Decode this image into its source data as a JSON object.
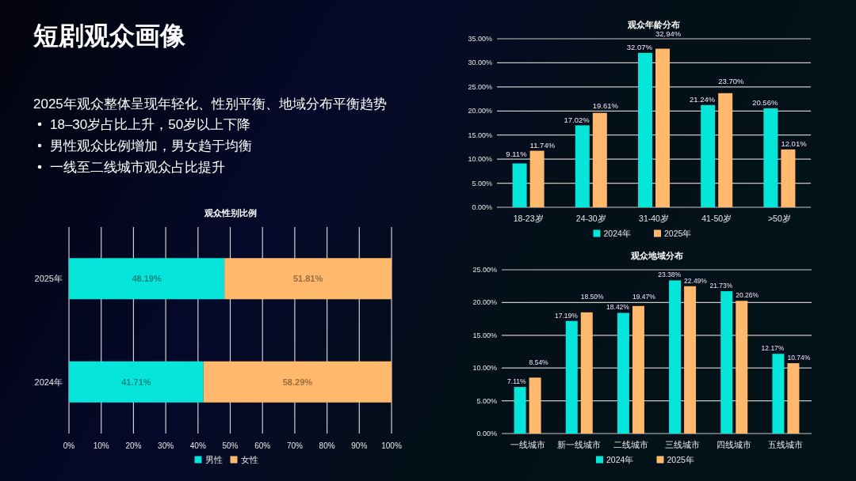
{
  "chart_data": [
    {
      "type": "other",
      "title": "短剧观众画像",
      "subtitle": "2025年观众整体呈现年轻化、性别平衡、地域分布平衡趋势",
      "annotations": [
        "18–30岁占比上升，50岁以上下降",
        "男性观众比例增加，男女趋于均衡",
        "一线至二线城市观众占比提升"
      ]
    },
    {
      "type": "bar",
      "title": "观众年龄分布",
      "categories": [
        "18-23岁",
        "24-30岁",
        "31-40岁",
        "41-50岁",
        ">50岁"
      ],
      "series": [
        {
          "name": "2024年",
          "color": "#05e5da",
          "values": [
            9.11,
            17.02,
            32.07,
            21.24,
            20.56
          ],
          "value_labels": [
            "9.11%",
            "17.02%",
            "32.07%",
            "21.24%",
            "20.56%"
          ]
        },
        {
          "name": "2025年",
          "color": "#ffb86c",
          "values": [
            11.74,
            19.61,
            32.94,
            23.7,
            12.01
          ],
          "value_labels": [
            "11.74%",
            "19.61%",
            "32.94%",
            "23.70%",
            "12.01%"
          ]
        }
      ],
      "ylim": [
        0,
        35
      ],
      "yticks": [
        {
          "value": 0,
          "label": "0.00%"
        },
        {
          "value": 5,
          "label": "5.00%"
        },
        {
          "value": 10,
          "label": "10.00%"
        },
        {
          "value": 15,
          "label": "15.00%"
        },
        {
          "value": 20,
          "label": "20.00%"
        },
        {
          "value": 25,
          "label": "25.00%"
        },
        {
          "value": 30,
          "label": "30.00%"
        },
        {
          "value": 35,
          "label": "35.00%"
        }
      ],
      "grid": "y",
      "legend": "bottom"
    },
    {
      "type": "bar",
      "title": "观众性别比例",
      "orientation": "horizontal",
      "stacked": true,
      "categories": [
        "2025年",
        "2024年"
      ],
      "series": [
        {
          "name": "男性",
          "color": "#05e5da",
          "values": [
            48.19,
            41.71
          ],
          "value_labels": [
            "48.19%",
            "41.71%"
          ]
        },
        {
          "name": "女性",
          "color": "#ffb86c",
          "values": [
            51.81,
            58.29
          ],
          "value_labels": [
            "51.81%",
            "58.29%"
          ]
        }
      ],
      "xlim": [
        0,
        100
      ],
      "xticks": [
        {
          "value": 0,
          "label": "0%"
        },
        {
          "value": 10,
          "label": "10%"
        },
        {
          "value": 20,
          "label": "20%"
        },
        {
          "value": 30,
          "label": "30%"
        },
        {
          "value": 40,
          "label": "40%"
        },
        {
          "value": 50,
          "label": "50%"
        },
        {
          "value": 60,
          "label": "60%"
        },
        {
          "value": 70,
          "label": "70%"
        },
        {
          "value": 80,
          "label": "80%"
        },
        {
          "value": 90,
          "label": "90%"
        },
        {
          "value": 100,
          "label": "100%"
        }
      ],
      "grid": "x",
      "legend": "bottom"
    },
    {
      "type": "bar",
      "title": "观众地域分布",
      "categories": [
        "一线城市",
        "新一线城市",
        "二线城市",
        "三线城市",
        "四线城市",
        "五线城市"
      ],
      "series": [
        {
          "name": "2024年",
          "color": "#05e5da",
          "values": [
            7.11,
            17.19,
            18.42,
            23.38,
            21.73,
            12.17
          ],
          "value_labels": [
            "7.11%",
            "17.19%",
            "18.42%",
            "23.38%",
            "21.73%",
            "12.17%"
          ]
        },
        {
          "name": "2025年",
          "color": "#ffb86c",
          "values": [
            8.54,
            18.5,
            19.47,
            22.49,
            20.26,
            10.74
          ],
          "value_labels": [
            "8.54%",
            "18.50%",
            "19.47%",
            "22.49%",
            "20.26%",
            "10.74%"
          ]
        }
      ],
      "ylim": [
        0,
        25
      ],
      "yticks": [
        {
          "value": 0,
          "label": "0.00%"
        },
        {
          "value": 5,
          "label": "5.00%"
        },
        {
          "value": 10,
          "label": "10.00%"
        },
        {
          "value": 15,
          "label": "15.00%"
        },
        {
          "value": 20,
          "label": "20.00%"
        },
        {
          "value": 25,
          "label": "25.00%"
        }
      ],
      "grid": "y",
      "legend": "bottom"
    }
  ]
}
